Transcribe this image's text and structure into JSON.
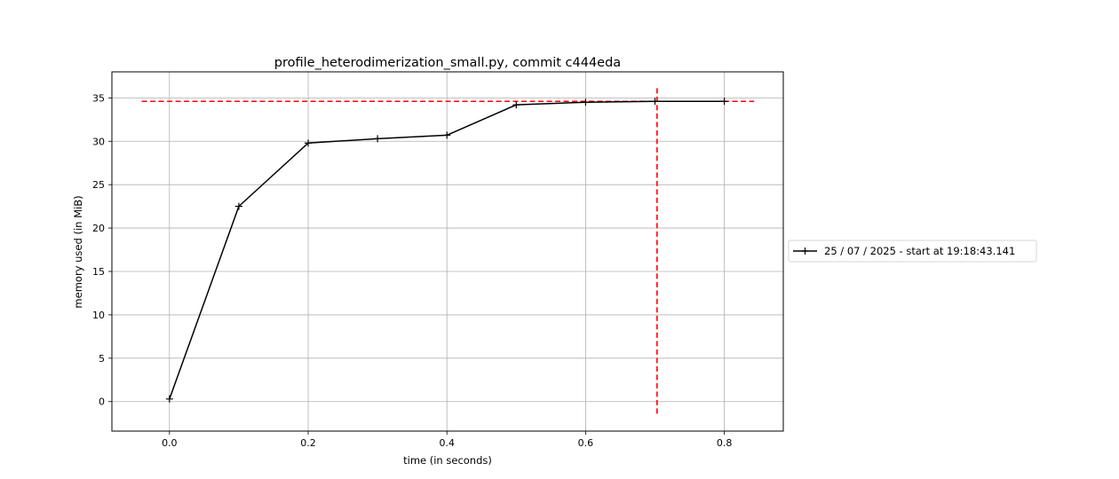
{
  "chart_data": {
    "type": "line",
    "title": "profile_heterodimerization_small.py, commit c444eda",
    "xlabel": "time (in seconds)",
    "ylabel": "memory used (in MiB)",
    "xlim": [
      -0.083,
      0.885
    ],
    "ylim": [
      -3.4,
      38.0
    ],
    "xticks": [
      0.0,
      0.2,
      0.4,
      0.6,
      0.8
    ],
    "xtick_labels": [
      "0.0",
      "0.2",
      "0.4",
      "0.6",
      "0.8"
    ],
    "yticks": [
      0,
      5,
      10,
      15,
      20,
      25,
      30,
      35
    ],
    "ytick_labels": [
      "0",
      "5",
      "10",
      "15",
      "20",
      "25",
      "30",
      "35"
    ],
    "grid": true,
    "legend_position": "outside-right",
    "series": [
      {
        "name": "25 / 07 / 2025 - start at 19:18:43.141",
        "color": "#000000",
        "marker": "plus",
        "x": [
          0.0,
          0.1,
          0.2,
          0.3,
          0.4,
          0.5,
          0.6,
          0.7,
          0.8
        ],
        "y": [
          0.3,
          22.5,
          29.8,
          30.3,
          30.7,
          34.2,
          34.5,
          34.6,
          34.6
        ]
      }
    ],
    "reference_lines": [
      {
        "orientation": "horizontal",
        "value": 34.6,
        "from": -0.04,
        "to": 0.843,
        "color": "#ff0000",
        "style": "dashed"
      },
      {
        "orientation": "vertical",
        "value": 0.703,
        "from": -1.4,
        "to": 36.2,
        "color": "#ff0000",
        "style": "dashed"
      }
    ]
  }
}
